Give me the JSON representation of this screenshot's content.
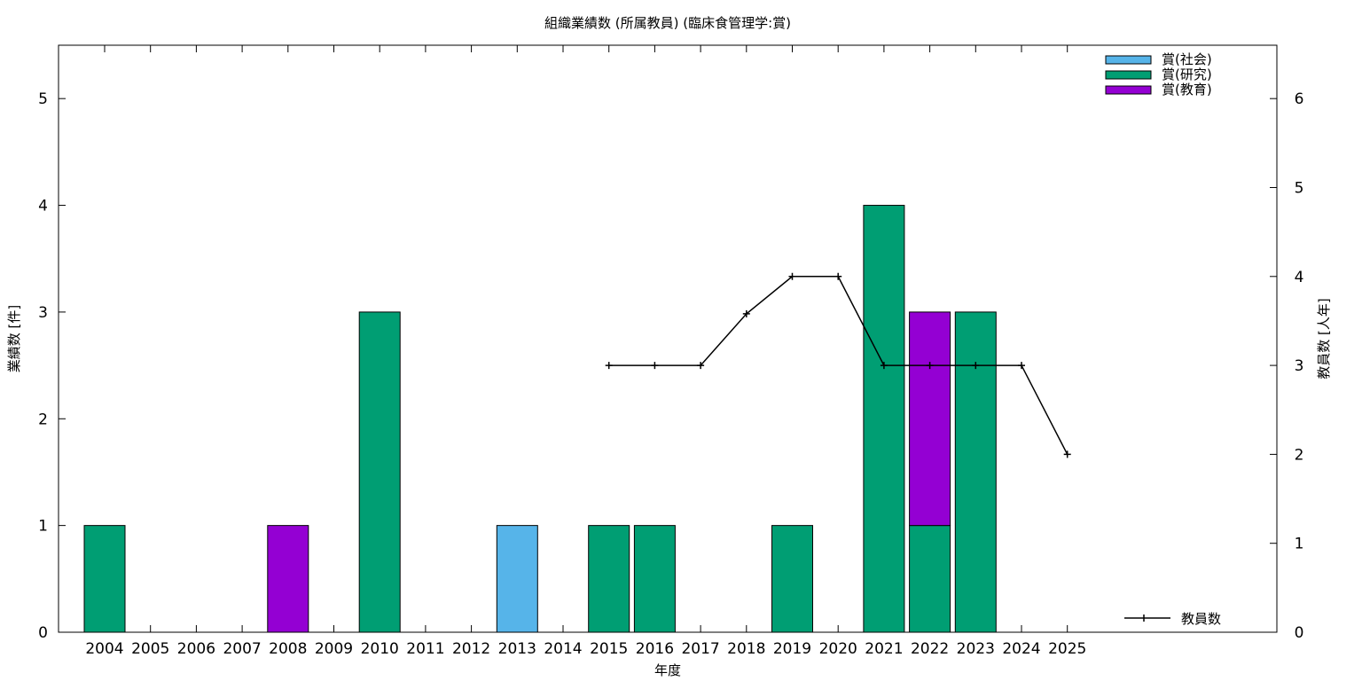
{
  "chart_data": {
    "type": "bar",
    "title": "組織業績数 (所属教員) (臨床食管理学:賞)",
    "xlabel": "年度",
    "ylabel": "業績数 [件]",
    "y2label": "教員数 [人年]",
    "categories": [
      "2004",
      "2005",
      "2006",
      "2007",
      "2008",
      "2009",
      "2010",
      "2011",
      "2012",
      "2013",
      "2014",
      "2015",
      "2016",
      "2017",
      "2018",
      "2019",
      "2020",
      "2021",
      "2022",
      "2023",
      "2024",
      "2025"
    ],
    "ylim": [
      0,
      5.5
    ],
    "yticks": [
      0,
      1,
      2,
      3,
      4,
      5
    ],
    "y2lim": [
      0,
      6.6
    ],
    "y2ticks": [
      0,
      1,
      2,
      3,
      4,
      5,
      6
    ],
    "stacked": true,
    "legend_position": "top-right",
    "series": [
      {
        "name": "賞(社会)",
        "color": "#56b4e9",
        "values": [
          0,
          0,
          0,
          0,
          0,
          0,
          0,
          0,
          0,
          1,
          0,
          0,
          0,
          0,
          0,
          0,
          0,
          0,
          0,
          0,
          0,
          0
        ]
      },
      {
        "name": "賞(研究)",
        "color": "#009e73",
        "values": [
          1,
          0,
          0,
          0,
          0,
          0,
          3,
          0,
          0,
          0,
          0,
          1,
          1,
          0,
          0,
          1,
          0,
          4,
          1,
          3,
          0,
          0
        ]
      },
      {
        "name": "賞(教育)",
        "color": "#9400d3",
        "values": [
          0,
          0,
          0,
          0,
          1,
          0,
          0,
          0,
          0,
          0,
          0,
          0,
          0,
          0,
          0,
          0,
          0,
          0,
          2,
          0,
          0,
          0
        ]
      }
    ],
    "line_series": {
      "name": "教員数",
      "color": "#000000",
      "axis": "y2",
      "x": [
        "2015",
        "2016",
        "2017",
        "2018",
        "2019",
        "2020",
        "2021",
        "2022",
        "2023",
        "2024",
        "2025"
      ],
      "values": [
        3,
        3,
        3,
        3.58,
        4,
        4,
        3,
        3,
        3,
        3,
        2
      ]
    }
  }
}
